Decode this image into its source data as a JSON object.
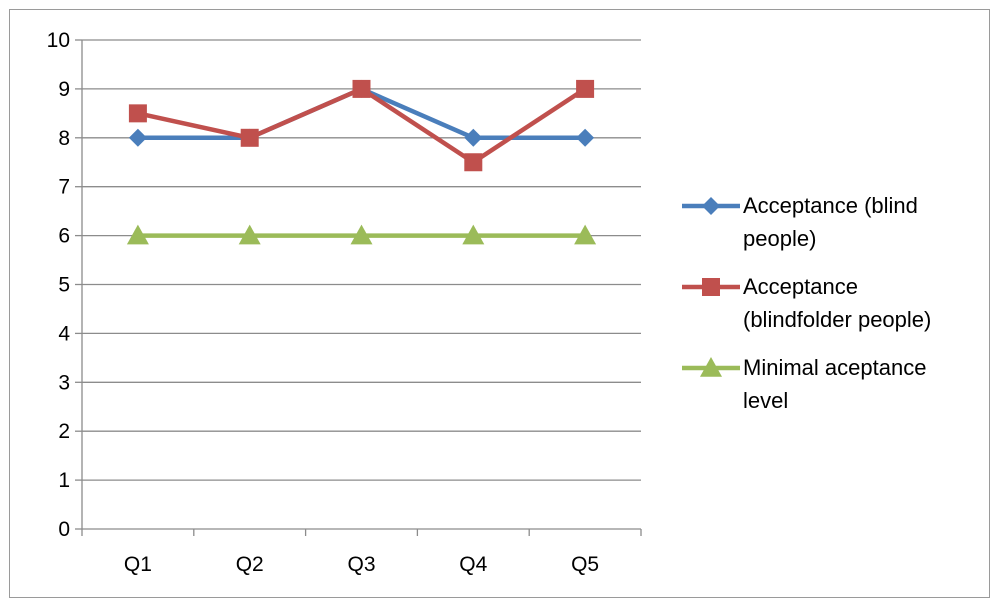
{
  "chart_data": {
    "type": "line",
    "categories": [
      "Q1",
      "Q2",
      "Q3",
      "Q4",
      "Q5"
    ],
    "ylim": [
      0,
      10
    ],
    "yticks": [
      0,
      1,
      2,
      3,
      4,
      5,
      6,
      7,
      8,
      9,
      10
    ],
    "grid": true,
    "legend_position": "right",
    "series": [
      {
        "name": "Acceptance (blind people)",
        "legend_lines": [
          "Acceptance (blind",
          "people)"
        ],
        "marker": "diamond",
        "color": "#4a7ebb",
        "values": [
          8,
          8,
          9,
          8,
          8
        ]
      },
      {
        "name": "Acceptance (blindfolder people)",
        "legend_lines": [
          "Acceptance",
          "(blindfolder people)"
        ],
        "marker": "square",
        "color": "#c0504d",
        "values": [
          8.5,
          8,
          9,
          7.5,
          9
        ]
      },
      {
        "name": "Minimal aceptance level",
        "legend_lines": [
          "Minimal aceptance",
          "level"
        ],
        "marker": "triangle",
        "color": "#9bbb59",
        "values": [
          6,
          6,
          6,
          6,
          6
        ]
      }
    ]
  }
}
